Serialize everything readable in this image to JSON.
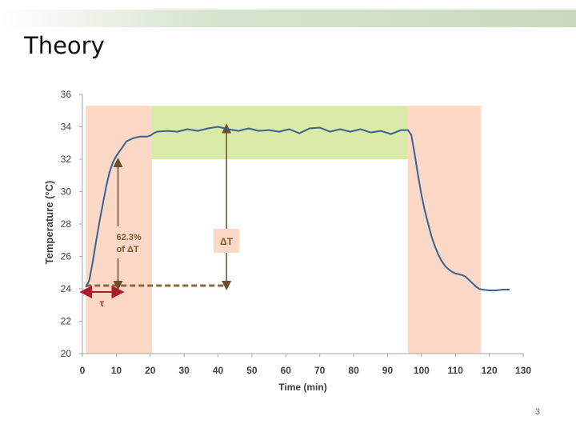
{
  "slide": {
    "title": "Theory",
    "page_number": "3"
  },
  "chart_data": {
    "type": "line",
    "title": "",
    "xlabel": "Time (min)",
    "ylabel": "Temperature (°C)",
    "xlim": [
      0,
      130
    ],
    "ylim": [
      20,
      36
    ],
    "x_ticks": [
      0,
      10,
      20,
      30,
      40,
      50,
      60,
      70,
      80,
      90,
      100,
      110,
      120,
      130
    ],
    "y_ticks": [
      20,
      22,
      24,
      26,
      28,
      30,
      32,
      34,
      36
    ],
    "grid": false,
    "legend": "none",
    "colors": {
      "line": "#3a6290",
      "transition_band": "#fbd9c6",
      "steady_band": "#d9eaa9",
      "arrow": "#6b4f2a",
      "tau_arrow": "#b0192a",
      "axis": "#a6a6a6",
      "tick_text": "#404040"
    },
    "series": [
      {
        "x": [
          1,
          2,
          3,
          4,
          5,
          6,
          7,
          8,
          9,
          10,
          11,
          12,
          13,
          14,
          15,
          16,
          17,
          18,
          19,
          20,
          21,
          22,
          25,
          28,
          31,
          34,
          37,
          40,
          43,
          46,
          49,
          52,
          55,
          58,
          61,
          64,
          67,
          70,
          73,
          76,
          79,
          82,
          85,
          88,
          91,
          94,
          96,
          97,
          98,
          99,
          100,
          101,
          102,
          103,
          104,
          105,
          106,
          107,
          108,
          109,
          110,
          111,
          112,
          113,
          114,
          115,
          116,
          117,
          118,
          120,
          122,
          124,
          126
        ],
        "y": [
          24.1,
          24.5,
          25.6,
          26.9,
          28.1,
          29.2,
          30.3,
          31.2,
          31.8,
          32.2,
          32.5,
          32.8,
          33.1,
          33.2,
          33.3,
          33.35,
          33.4,
          33.4,
          33.4,
          33.45,
          33.6,
          33.7,
          33.75,
          33.7,
          33.85,
          33.75,
          33.9,
          34.0,
          33.85,
          33.75,
          33.9,
          33.75,
          33.8,
          33.7,
          33.85,
          33.6,
          33.9,
          33.95,
          33.7,
          33.85,
          33.7,
          33.85,
          33.65,
          33.75,
          33.55,
          33.8,
          33.8,
          33.5,
          32.3,
          31.0,
          29.8,
          28.8,
          28.0,
          27.2,
          26.6,
          26.1,
          25.7,
          25.4,
          25.2,
          25.05,
          24.95,
          24.9,
          24.85,
          24.75,
          24.55,
          24.35,
          24.15,
          24.0,
          23.95,
          23.9,
          23.9,
          23.95,
          23.95
        ]
      }
    ],
    "bands": [
      {
        "x": [
          1,
          20.5
        ],
        "y": [
          20,
          35.3
        ],
        "kind": "transition"
      },
      {
        "x": [
          20.5,
          96
        ],
        "y": [
          32,
          35.3
        ],
        "kind": "steady"
      },
      {
        "x": [
          96,
          117.5
        ],
        "y": [
          20,
          35.3
        ],
        "kind": "transition"
      }
    ],
    "annotations": {
      "tau": {
        "label": "τ",
        "x_from": 1,
        "x_to": 10.5,
        "y": 23.8
      },
      "percent_arrow": {
        "label_line1": "62.3%",
        "label_line2": "of ΔT",
        "x": 10.5,
        "y_from": 24.2,
        "y_to": 31.8
      },
      "delta_arrow": {
        "label": "ΔT",
        "x": 42.5,
        "y_from": 24.2,
        "y_to": 33.9
      },
      "baseline": {
        "x_from": 1,
        "x_to": 42.5,
        "y": 24.2
      }
    }
  }
}
